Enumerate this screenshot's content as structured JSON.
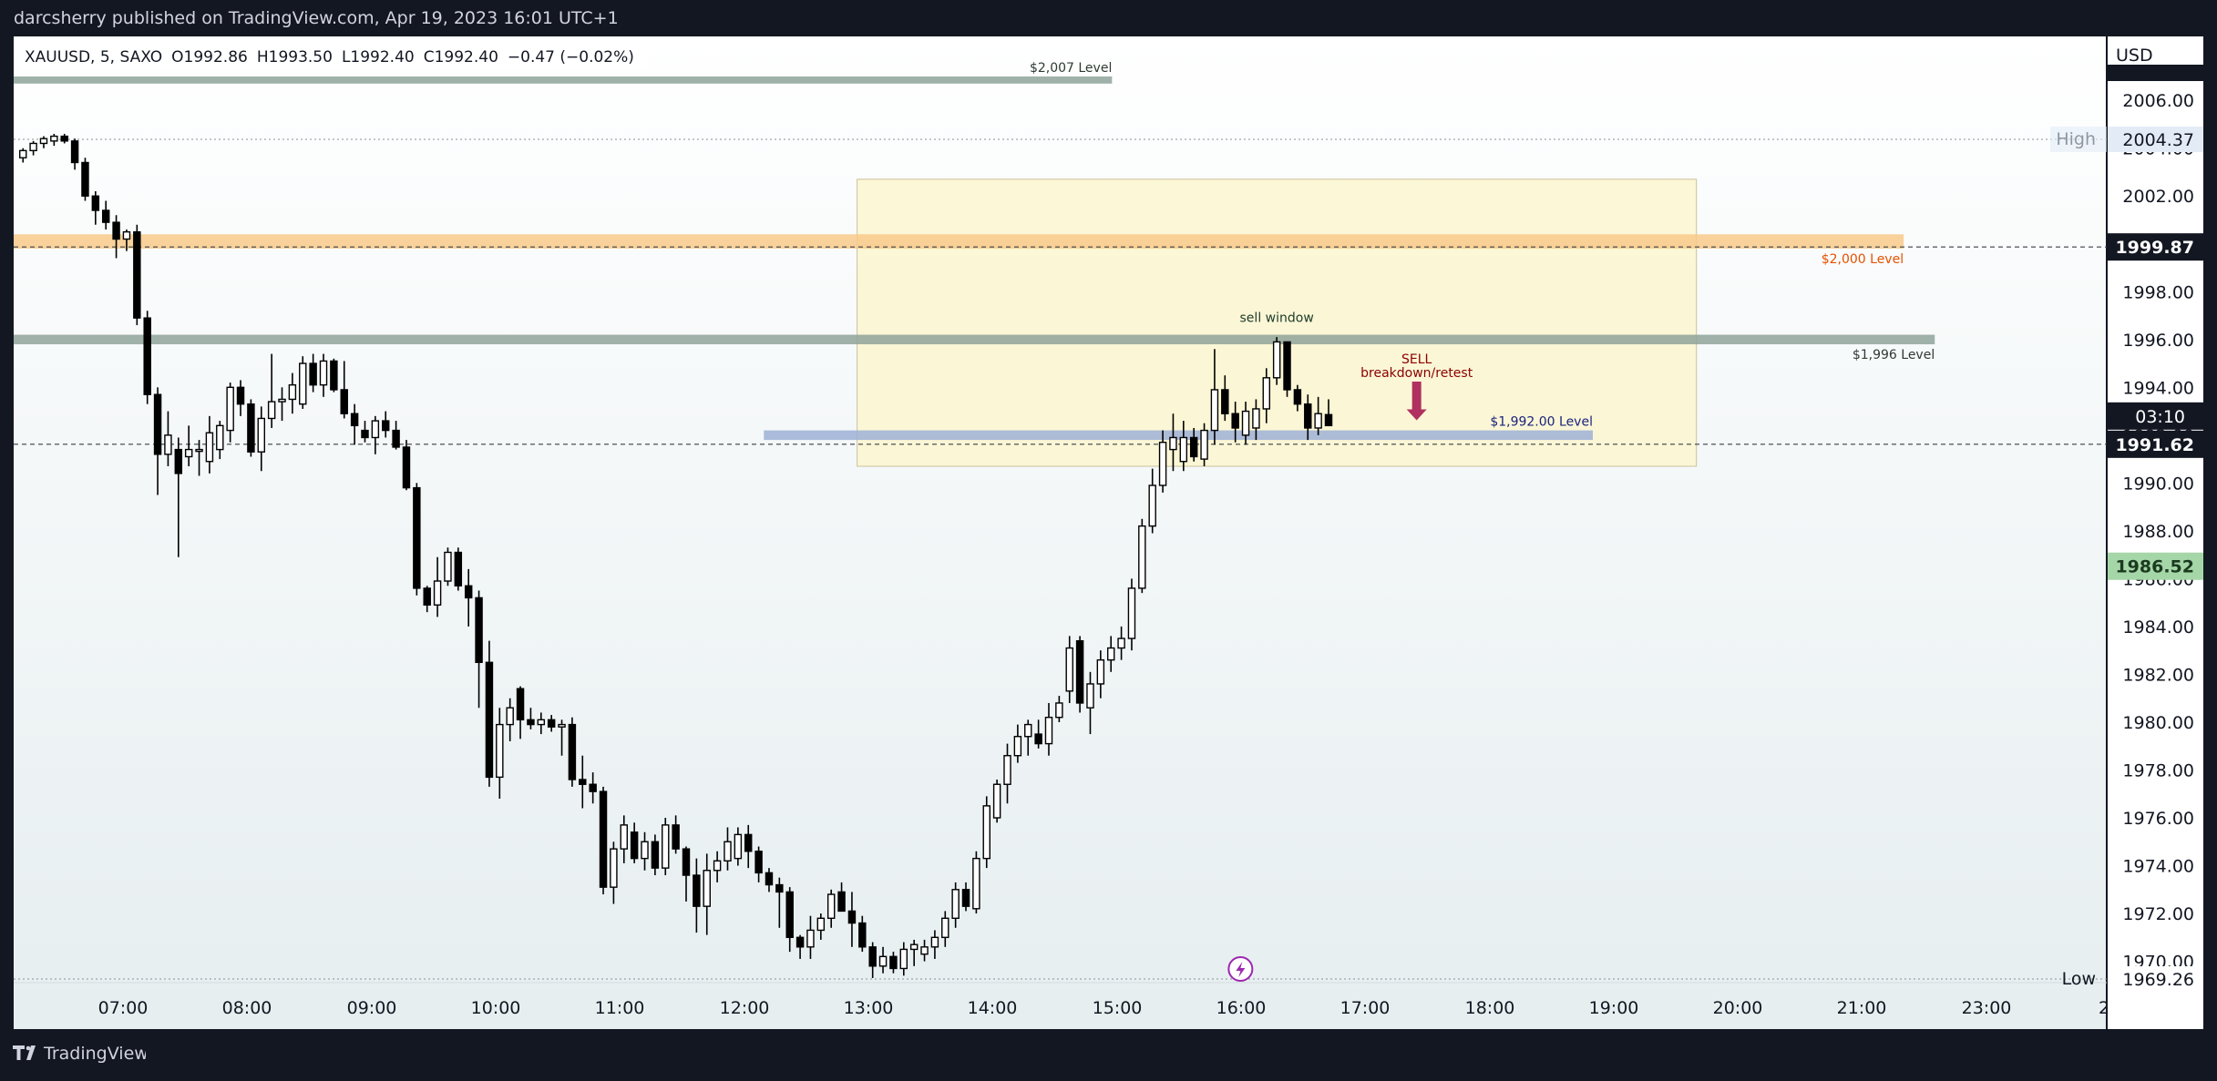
{
  "header": {
    "published_text": "darcsherry published on TradingView.com, Apr 19, 2023 16:01 UTC+1"
  },
  "footer": {
    "brand": "TradingView"
  },
  "colors": {
    "background": "#131722",
    "chart_bg_top": "#ffffff",
    "chart_bg_bottom": "#e6eef0",
    "candle_up": "#ffffff",
    "candle_down": "#000000",
    "zone_gray": "#8fa39a",
    "zone_orange": "#f8c98a",
    "zone_blue": "#9db0d6",
    "sell_window_fill": "#fbf6cf",
    "orange_text": "#e65100",
    "red_text": "#8b0000",
    "blue_text": "#1a237e",
    "arrow": "#b03060"
  },
  "chart_data": {
    "type": "candlestick",
    "title": "",
    "legend": {
      "symbol": "XAUUSD, 5, SAXO",
      "o": "O1992.86",
      "h": "H1993.50",
      "l": "L1992.40",
      "c": "C1992.40",
      "change": "−0.47 (−0.02%)"
    },
    "currency": "USD",
    "ylim": [
      1969.26,
      2007.2
    ],
    "y_ticks": [
      "2006.00",
      "2004.00",
      "2002.00",
      "2000.00",
      "1998.00",
      "1996.00",
      "1994.00",
      "1992.00",
      "1990.00",
      "1988.00",
      "1986.00",
      "1984.00",
      "1982.00",
      "1980.00",
      "1978.00",
      "1976.00",
      "1974.00",
      "1972.00",
      "1970.00"
    ],
    "x_ticks": [
      "07:00",
      "08:00",
      "09:00",
      "10:00",
      "11:00",
      "12:00",
      "13:00",
      "14:00",
      "15:00",
      "16:00",
      "17:00",
      "18:00",
      "19:00",
      "20:00",
      "21:00",
      "23:00",
      "2"
    ],
    "x_range": [
      "06:08",
      "22:58"
    ],
    "grid": false,
    "candles": [
      {
        "t": "06:10",
        "o": 2003.6,
        "h": 2004.0,
        "l": 2003.4,
        "c": 2003.9
      },
      {
        "t": "06:15",
        "o": 2003.9,
        "h": 2004.3,
        "l": 2003.7,
        "c": 2004.2
      },
      {
        "t": "06:20",
        "o": 2004.2,
        "h": 2004.5,
        "l": 2004.0,
        "c": 2004.4
      },
      {
        "t": "06:25",
        "o": 2004.3,
        "h": 2004.6,
        "l": 2004.1,
        "c": 2004.5
      },
      {
        "t": "06:30",
        "o": 2004.5,
        "h": 2004.6,
        "l": 2004.2,
        "c": 2004.3
      },
      {
        "t": "06:35",
        "o": 2004.3,
        "h": 2004.4,
        "l": 2003.1,
        "c": 2003.4
      },
      {
        "t": "06:40",
        "o": 2003.4,
        "h": 2003.6,
        "l": 2001.8,
        "c": 2002.0
      },
      {
        "t": "06:45",
        "o": 2002.0,
        "h": 2002.2,
        "l": 2000.8,
        "c": 2001.4
      },
      {
        "t": "06:50",
        "o": 2001.4,
        "h": 2001.8,
        "l": 2000.6,
        "c": 2000.9
      },
      {
        "t": "06:55",
        "o": 2000.9,
        "h": 2001.2,
        "l": 1999.4,
        "c": 2000.2
      },
      {
        "t": "07:00",
        "o": 2000.2,
        "h": 2000.6,
        "l": 1999.7,
        "c": 2000.5
      },
      {
        "t": "07:05",
        "o": 2000.5,
        "h": 2000.8,
        "l": 1996.6,
        "c": 1996.9
      },
      {
        "t": "07:10",
        "o": 1996.9,
        "h": 1997.2,
        "l": 1993.3,
        "c": 1993.7
      },
      {
        "t": "07:15",
        "o": 1993.7,
        "h": 1994.0,
        "l": 1989.5,
        "c": 1991.2
      },
      {
        "t": "07:20",
        "o": 1991.2,
        "h": 1993.0,
        "l": 1990.7,
        "c": 1992.0
      },
      {
        "t": "07:25",
        "o": 1991.4,
        "h": 1991.9,
        "l": 1986.9,
        "c": 1990.4
      },
      {
        "t": "07:30",
        "o": 1991.1,
        "h": 1992.4,
        "l": 1990.7,
        "c": 1991.4
      },
      {
        "t": "07:35",
        "o": 1991.4,
        "h": 1991.8,
        "l": 1990.3,
        "c": 1991.4
      },
      {
        "t": "07:40",
        "o": 1990.9,
        "h": 1992.8,
        "l": 1990.4,
        "c": 1992.1
      },
      {
        "t": "07:45",
        "o": 1991.4,
        "h": 1992.6,
        "l": 1991.0,
        "c": 1992.4
      },
      {
        "t": "07:50",
        "o": 1992.2,
        "h": 1994.2,
        "l": 1991.7,
        "c": 1994.0
      },
      {
        "t": "07:55",
        "o": 1994.0,
        "h": 1994.3,
        "l": 1992.8,
        "c": 1993.3
      },
      {
        "t": "08:00",
        "o": 1993.3,
        "h": 1993.5,
        "l": 1991.1,
        "c": 1991.3
      },
      {
        "t": "08:05",
        "o": 1991.3,
        "h": 1993.2,
        "l": 1990.5,
        "c": 1992.7
      },
      {
        "t": "08:10",
        "o": 1992.7,
        "h": 1995.4,
        "l": 1992.3,
        "c": 1993.4
      },
      {
        "t": "08:15",
        "o": 1993.4,
        "h": 1994.0,
        "l": 1992.6,
        "c": 1993.5
      },
      {
        "t": "08:20",
        "o": 1993.5,
        "h": 1994.6,
        "l": 1992.9,
        "c": 1994.1
      },
      {
        "t": "08:25",
        "o": 1993.3,
        "h": 1995.3,
        "l": 1993.1,
        "c": 1995.0
      },
      {
        "t": "08:30",
        "o": 1995.0,
        "h": 1995.4,
        "l": 1993.8,
        "c": 1994.1
      },
      {
        "t": "08:35",
        "o": 1994.1,
        "h": 1995.4,
        "l": 1993.6,
        "c": 1995.1
      },
      {
        "t": "08:40",
        "o": 1995.1,
        "h": 1995.2,
        "l": 1993.8,
        "c": 1993.9
      },
      {
        "t": "08:45",
        "o": 1993.9,
        "h": 1995.1,
        "l": 1992.7,
        "c": 1992.9
      },
      {
        "t": "08:50",
        "o": 1992.9,
        "h": 1993.3,
        "l": 1991.6,
        "c": 1992.4
      },
      {
        "t": "08:55",
        "o": 1992.2,
        "h": 1992.6,
        "l": 1991.7,
        "c": 1991.9
      },
      {
        "t": "09:00",
        "o": 1991.9,
        "h": 1992.8,
        "l": 1991.2,
        "c": 1992.6
      },
      {
        "t": "09:05",
        "o": 1992.6,
        "h": 1993.0,
        "l": 1991.9,
        "c": 1992.2
      },
      {
        "t": "09:10",
        "o": 1992.2,
        "h": 1992.6,
        "l": 1991.4,
        "c": 1991.5
      },
      {
        "t": "09:15",
        "o": 1991.5,
        "h": 1991.8,
        "l": 1989.7,
        "c": 1989.8
      },
      {
        "t": "09:20",
        "o": 1989.8,
        "h": 1990.0,
        "l": 1985.3,
        "c": 1985.6
      },
      {
        "t": "09:25",
        "o": 1985.6,
        "h": 1985.7,
        "l": 1984.6,
        "c": 1984.9
      },
      {
        "t": "09:30",
        "o": 1984.9,
        "h": 1986.9,
        "l": 1984.4,
        "c": 1985.9
      },
      {
        "t": "09:35",
        "o": 1985.9,
        "h": 1987.3,
        "l": 1985.7,
        "c": 1987.1
      },
      {
        "t": "09:40",
        "o": 1987.1,
        "h": 1987.3,
        "l": 1985.5,
        "c": 1985.7
      },
      {
        "t": "09:45",
        "o": 1985.7,
        "h": 1986.4,
        "l": 1984.0,
        "c": 1985.2
      },
      {
        "t": "09:50",
        "o": 1985.2,
        "h": 1985.5,
        "l": 1980.6,
        "c": 1982.5
      },
      {
        "t": "09:55",
        "o": 1982.5,
        "h": 1983.4,
        "l": 1977.3,
        "c": 1977.7
      },
      {
        "t": "10:00",
        "o": 1977.7,
        "h": 1980.6,
        "l": 1976.8,
        "c": 1979.9
      },
      {
        "t": "10:05",
        "o": 1979.9,
        "h": 1981.0,
        "l": 1979.2,
        "c": 1980.6
      },
      {
        "t": "10:10",
        "o": 1981.4,
        "h": 1981.5,
        "l": 1979.3,
        "c": 1980.1
      },
      {
        "t": "10:15",
        "o": 1980.1,
        "h": 1980.6,
        "l": 1979.7,
        "c": 1979.9
      },
      {
        "t": "10:20",
        "o": 1979.9,
        "h": 1980.4,
        "l": 1979.5,
        "c": 1980.1
      },
      {
        "t": "10:25",
        "o": 1980.1,
        "h": 1980.3,
        "l": 1979.6,
        "c": 1979.8
      },
      {
        "t": "10:30",
        "o": 1979.8,
        "h": 1980.1,
        "l": 1978.6,
        "c": 1979.9
      },
      {
        "t": "10:35",
        "o": 1979.9,
        "h": 1980.2,
        "l": 1977.3,
        "c": 1977.6
      },
      {
        "t": "10:40",
        "o": 1977.6,
        "h": 1978.6,
        "l": 1976.4,
        "c": 1977.4
      },
      {
        "t": "10:45",
        "o": 1977.4,
        "h": 1977.9,
        "l": 1976.6,
        "c": 1977.1
      },
      {
        "t": "10:50",
        "o": 1977.1,
        "h": 1977.3,
        "l": 1972.8,
        "c": 1973.1
      },
      {
        "t": "10:55",
        "o": 1973.1,
        "h": 1975.0,
        "l": 1972.4,
        "c": 1974.7
      },
      {
        "t": "11:00",
        "o": 1974.7,
        "h": 1976.1,
        "l": 1974.1,
        "c": 1975.7
      },
      {
        "t": "11:05",
        "o": 1975.4,
        "h": 1975.8,
        "l": 1974.1,
        "c": 1974.3
      },
      {
        "t": "11:10",
        "o": 1974.3,
        "h": 1975.4,
        "l": 1973.8,
        "c": 1975.0
      },
      {
        "t": "11:15",
        "o": 1975.0,
        "h": 1975.3,
        "l": 1973.6,
        "c": 1973.9
      },
      {
        "t": "11:20",
        "o": 1973.9,
        "h": 1976.0,
        "l": 1973.6,
        "c": 1975.7
      },
      {
        "t": "11:25",
        "o": 1975.7,
        "h": 1976.1,
        "l": 1974.5,
        "c": 1974.7
      },
      {
        "t": "11:30",
        "o": 1974.7,
        "h": 1974.8,
        "l": 1972.5,
        "c": 1973.6
      },
      {
        "t": "11:35",
        "o": 1973.6,
        "h": 1974.3,
        "l": 1971.2,
        "c": 1972.3
      },
      {
        "t": "11:40",
        "o": 1972.3,
        "h": 1974.5,
        "l": 1971.1,
        "c": 1973.8
      },
      {
        "t": "11:45",
        "o": 1973.8,
        "h": 1974.6,
        "l": 1973.3,
        "c": 1974.2
      },
      {
        "t": "11:50",
        "o": 1974.2,
        "h": 1975.6,
        "l": 1973.8,
        "c": 1975.0
      },
      {
        "t": "11:55",
        "o": 1974.3,
        "h": 1975.6,
        "l": 1974.0,
        "c": 1975.3
      },
      {
        "t": "12:00",
        "o": 1975.3,
        "h": 1975.7,
        "l": 1973.9,
        "c": 1974.6
      },
      {
        "t": "12:05",
        "o": 1974.6,
        "h": 1974.8,
        "l": 1973.3,
        "c": 1973.7
      },
      {
        "t": "12:10",
        "o": 1973.7,
        "h": 1973.9,
        "l": 1972.9,
        "c": 1973.2
      },
      {
        "t": "12:15",
        "o": 1973.2,
        "h": 1973.5,
        "l": 1971.4,
        "c": 1972.9
      },
      {
        "t": "12:20",
        "o": 1972.9,
        "h": 1973.1,
        "l": 1970.4,
        "c": 1971.0
      },
      {
        "t": "12:25",
        "o": 1971.0,
        "h": 1971.1,
        "l": 1970.1,
        "c": 1970.6
      },
      {
        "t": "12:30",
        "o": 1970.6,
        "h": 1971.9,
        "l": 1970.1,
        "c": 1971.3
      },
      {
        "t": "12:35",
        "o": 1971.3,
        "h": 1972.0,
        "l": 1970.9,
        "c": 1971.8
      },
      {
        "t": "12:40",
        "o": 1971.8,
        "h": 1973.0,
        "l": 1971.4,
        "c": 1972.8
      },
      {
        "t": "12:45",
        "o": 1972.9,
        "h": 1973.3,
        "l": 1972.1,
        "c": 1972.1
      },
      {
        "t": "12:50",
        "o": 1972.1,
        "h": 1972.9,
        "l": 1970.6,
        "c": 1971.6
      },
      {
        "t": "12:55",
        "o": 1971.6,
        "h": 1971.9,
        "l": 1970.4,
        "c": 1970.6
      },
      {
        "t": "13:00",
        "o": 1970.6,
        "h": 1970.8,
        "l": 1969.3,
        "c": 1969.8
      },
      {
        "t": "13:05",
        "o": 1969.8,
        "h": 1970.6,
        "l": 1969.5,
        "c": 1970.2
      },
      {
        "t": "13:10",
        "o": 1970.2,
        "h": 1970.4,
        "l": 1969.5,
        "c": 1969.7
      },
      {
        "t": "13:15",
        "o": 1969.7,
        "h": 1970.8,
        "l": 1969.4,
        "c": 1970.5
      },
      {
        "t": "13:20",
        "o": 1970.5,
        "h": 1970.9,
        "l": 1969.8,
        "c": 1970.7
      },
      {
        "t": "13:25",
        "o": 1970.3,
        "h": 1970.9,
        "l": 1970.0,
        "c": 1970.6
      },
      {
        "t": "13:30",
        "o": 1970.6,
        "h": 1971.3,
        "l": 1970.1,
        "c": 1971.0
      },
      {
        "t": "13:35",
        "o": 1971.0,
        "h": 1972.1,
        "l": 1970.6,
        "c": 1971.8
      },
      {
        "t": "13:40",
        "o": 1971.8,
        "h": 1973.3,
        "l": 1971.4,
        "c": 1973.0
      },
      {
        "t": "13:45",
        "o": 1973.0,
        "h": 1973.3,
        "l": 1972.1,
        "c": 1972.3
      },
      {
        "t": "13:50",
        "o": 1972.2,
        "h": 1974.6,
        "l": 1972.0,
        "c": 1974.3
      },
      {
        "t": "13:55",
        "o": 1974.3,
        "h": 1976.9,
        "l": 1973.9,
        "c": 1976.5
      },
      {
        "t": "14:00",
        "o": 1976.0,
        "h": 1977.6,
        "l": 1975.8,
        "c": 1977.4
      },
      {
        "t": "14:05",
        "o": 1977.4,
        "h": 1979.1,
        "l": 1976.6,
        "c": 1978.6
      },
      {
        "t": "14:10",
        "o": 1978.6,
        "h": 1979.9,
        "l": 1978.3,
        "c": 1979.4
      },
      {
        "t": "14:15",
        "o": 1979.4,
        "h": 1980.1,
        "l": 1978.6,
        "c": 1979.9
      },
      {
        "t": "14:20",
        "o": 1979.5,
        "h": 1980.1,
        "l": 1978.9,
        "c": 1979.1
      },
      {
        "t": "14:25",
        "o": 1979.1,
        "h": 1980.8,
        "l": 1978.6,
        "c": 1980.2
      },
      {
        "t": "14:30",
        "o": 1980.2,
        "h": 1981.1,
        "l": 1980.0,
        "c": 1980.8
      },
      {
        "t": "14:35",
        "o": 1981.3,
        "h": 1983.6,
        "l": 1980.8,
        "c": 1983.1
      },
      {
        "t": "14:40",
        "o": 1983.4,
        "h": 1983.6,
        "l": 1980.4,
        "c": 1980.8
      },
      {
        "t": "14:45",
        "o": 1980.6,
        "h": 1982.1,
        "l": 1979.5,
        "c": 1981.6
      },
      {
        "t": "14:50",
        "o": 1981.6,
        "h": 1983.0,
        "l": 1981.0,
        "c": 1982.6
      },
      {
        "t": "14:55",
        "o": 1982.6,
        "h": 1983.6,
        "l": 1982.1,
        "c": 1983.1
      },
      {
        "t": "15:00",
        "o": 1983.1,
        "h": 1984.0,
        "l": 1982.6,
        "c": 1983.5
      },
      {
        "t": "15:05",
        "o": 1983.5,
        "h": 1986.0,
        "l": 1983.0,
        "c": 1985.6
      },
      {
        "t": "15:10",
        "o": 1985.6,
        "h": 1988.5,
        "l": 1985.4,
        "c": 1988.2
      },
      {
        "t": "15:15",
        "o": 1988.2,
        "h": 1990.6,
        "l": 1987.9,
        "c": 1989.9
      },
      {
        "t": "15:20",
        "o": 1989.9,
        "h": 1992.2,
        "l": 1989.6,
        "c": 1991.7
      },
      {
        "t": "15:25",
        "o": 1991.4,
        "h": 1992.9,
        "l": 1990.5,
        "c": 1991.9
      },
      {
        "t": "15:30",
        "o": 1990.9,
        "h": 1992.6,
        "l": 1990.5,
        "c": 1991.9
      },
      {
        "t": "15:35",
        "o": 1991.9,
        "h": 1992.3,
        "l": 1990.9,
        "c": 1991.1
      },
      {
        "t": "15:40",
        "o": 1991.0,
        "h": 1992.5,
        "l": 1990.7,
        "c": 1992.2
      },
      {
        "t": "15:45",
        "o": 1992.2,
        "h": 1995.6,
        "l": 1991.6,
        "c": 1993.9
      },
      {
        "t": "15:50",
        "o": 1993.9,
        "h": 1994.5,
        "l": 1992.6,
        "c": 1992.9
      },
      {
        "t": "15:55",
        "o": 1992.9,
        "h": 1993.4,
        "l": 1991.7,
        "c": 1992.3
      },
      {
        "t": "16:00",
        "o": 1992.0,
        "h": 1993.4,
        "l": 1991.6,
        "c": 1993.0
      },
      {
        "t": "16:05",
        "o": 1992.3,
        "h": 1993.5,
        "l": 1991.8,
        "c": 1993.1
      },
      {
        "t": "16:10",
        "o": 1993.1,
        "h": 1994.8,
        "l": 1992.5,
        "c": 1994.4
      },
      {
        "t": "16:15",
        "o": 1994.4,
        "h": 1996.1,
        "l": 1994.1,
        "c": 1995.9
      },
      {
        "t": "16:20",
        "o": 1995.9,
        "h": 1995.9,
        "l": 1993.6,
        "c": 1993.9
      },
      {
        "t": "16:25",
        "o": 1993.9,
        "h": 1994.1,
        "l": 1993.0,
        "c": 1993.3
      },
      {
        "t": "16:30",
        "o": 1993.3,
        "h": 1993.7,
        "l": 1991.8,
        "c": 1992.3
      },
      {
        "t": "16:35",
        "o": 1992.3,
        "h": 1993.6,
        "l": 1992.0,
        "c": 1992.9
      },
      {
        "t": "16:40",
        "o": 1992.86,
        "h": 1993.5,
        "l": 1992.4,
        "c": 1992.4
      }
    ],
    "levels": [
      {
        "label": "$2,007 Level",
        "y_low": 2006.7,
        "y_high": 2007.0,
        "from": "06:08",
        "to": "14:58",
        "color": "#8fa39a",
        "text_color": "#2e3b33",
        "label_above": true
      },
      {
        "label": "$2,000 Level",
        "y_low": 1999.8,
        "y_high": 2000.4,
        "from": "06:08",
        "to": "21:20",
        "color": "#f8c98a",
        "text_color": "#e65100",
        "label_above": false
      },
      {
        "label": "$1,996 Level",
        "y_low": 1995.8,
        "y_high": 1996.2,
        "from": "06:08",
        "to": "21:35",
        "color": "#8fa39a",
        "text_color": "#2e3b33",
        "label_above": false
      },
      {
        "label": "$1,992.00 Level",
        "y_low": 1991.8,
        "y_high": 1992.2,
        "from": "12:10",
        "to": "18:50",
        "color": "#9db0d6",
        "text_color": "#1a237e",
        "label_above": true
      }
    ],
    "sell_window": {
      "label": "sell window",
      "from": "12:55",
      "to": "19:40",
      "y_low": 1990.7,
      "y_high": 2002.7
    },
    "sell_note": {
      "lines": [
        "SELL",
        "breakdown/retest"
      ],
      "x": "17:25",
      "y_top": 1995.0,
      "arrow_tip": 1992.7
    },
    "high_line": {
      "label": "High",
      "value": "2004.37",
      "y": 2004.37
    },
    "low_line": {
      "label": "Low",
      "value": "1969.26",
      "y": 1969.26
    },
    "dashed_lines": [
      1999.87,
      1991.62
    ],
    "price_badges": [
      {
        "value": "1999.87",
        "y": 1999.87,
        "bg": "#131722",
        "fg": "#ffffff"
      },
      {
        "value": "1991.62",
        "y": 1991.62,
        "bg": "#131722",
        "fg": "#ffffff",
        "countdown": "03:10"
      },
      {
        "value": "1986.52",
        "y": 1986.52,
        "bg": "#a5d6a7",
        "fg": "#1b3a1f"
      }
    ],
    "event_marker_time": "16:00"
  }
}
